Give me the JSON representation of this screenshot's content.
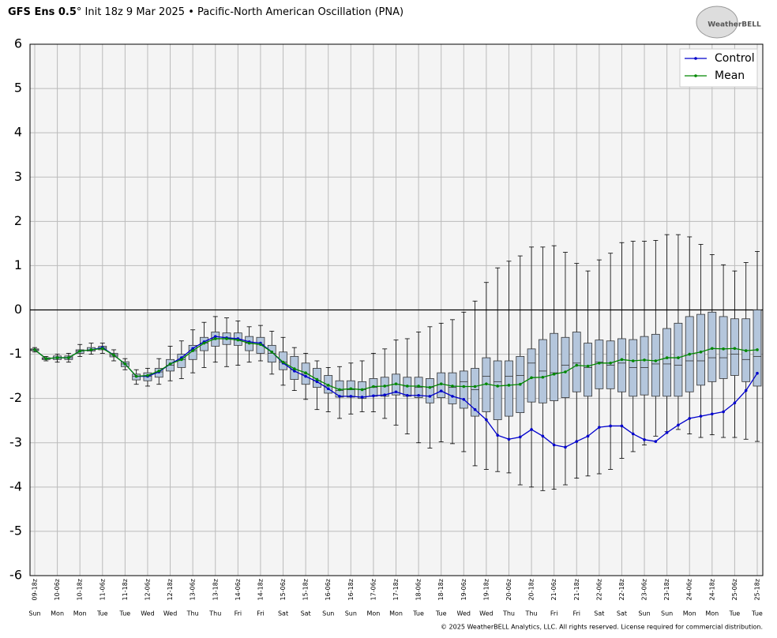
{
  "chart_data": {
    "type": "box",
    "title": [
      "GFS Ens 0.5",
      "° Init 18z 9 Mar 2025 • Pacific-North American Oscillation (PNA)"
    ],
    "logo": "WeatherBELL",
    "footer": "© 2025 WeatherBELL Analytics, LLC. All rights reserved. License required for commercial distribution.",
    "categories": [
      "09-18z",
      null,
      "10-06z",
      null,
      "10-18z",
      null,
      "11-06z",
      null,
      "11-18z",
      null,
      "12-06z",
      null,
      "12-18z",
      null,
      "13-06z",
      null,
      "13-18z",
      null,
      "14-06z",
      null,
      "14-18z",
      null,
      "15-06z",
      null,
      "15-18z",
      null,
      "16-06z",
      null,
      "16-18z",
      null,
      "17-06z",
      null,
      "17-18z",
      null,
      "18-06z",
      null,
      "18-18z",
      null,
      "19-06z",
      null,
      "19-18z",
      null,
      "20-06z",
      null,
      "20-18z",
      null,
      "21-06z",
      null,
      "21-18z",
      null,
      "22-06z",
      null,
      "22-18z",
      null,
      "23-06z",
      null,
      "23-18z",
      null,
      "24-06z",
      null,
      "24-18z",
      null,
      "25-06z",
      null,
      "25-18z"
    ],
    "days": [
      "Sun",
      null,
      "Mon",
      null,
      "Mon",
      null,
      "Tue",
      null,
      "Tue",
      null,
      "Wed",
      null,
      "Wed",
      null,
      "Thu",
      null,
      "Thu",
      null,
      "Fri",
      null,
      "Fri",
      null,
      "Sat",
      null,
      "Sat",
      null,
      "Sun",
      null,
      "Sun",
      null,
      "Mon",
      null,
      "Mon",
      null,
      "Tue",
      null,
      "Tue",
      null,
      "Wed",
      null,
      "Wed",
      null,
      "Thu",
      null,
      "Thu",
      null,
      "Fri",
      null,
      "Fri",
      null,
      "Sat",
      null,
      "Sat",
      null,
      "Sun",
      null,
      "Sun",
      null,
      "Mon",
      null,
      "Mon",
      null,
      "Tue",
      null,
      "Tue"
    ],
    "box_stats": [
      [
        -0.95,
        -0.92,
        -0.9,
        -0.88,
        -0.85
      ],
      [
        -1.15,
        -1.12,
        -1.1,
        -1.08,
        -1.05
      ],
      [
        -1.18,
        -1.12,
        -1.08,
        -1.04,
        -1.0
      ],
      [
        -1.18,
        -1.12,
        -1.08,
        -1.04,
        -0.98
      ],
      [
        -1.05,
        -0.98,
        -0.93,
        -0.9,
        -0.78
      ],
      [
        -1.0,
        -0.93,
        -0.9,
        -0.85,
        -0.75
      ],
      [
        -0.98,
        -0.9,
        -0.86,
        -0.82,
        -0.75
      ],
      [
        -1.15,
        -1.06,
        -1.02,
        -0.98,
        -0.9
      ],
      [
        -1.35,
        -1.28,
        -1.22,
        -1.17,
        -1.1
      ],
      [
        -1.68,
        -1.58,
        -1.5,
        -1.45,
        -1.35
      ],
      [
        -1.72,
        -1.6,
        -1.5,
        -1.42,
        -1.32
      ],
      [
        -1.68,
        -1.52,
        -1.4,
        -1.32,
        -1.1
      ],
      [
        -1.6,
        -1.38,
        -1.25,
        -1.12,
        -0.82
      ],
      [
        -1.55,
        -1.3,
        -1.12,
        -1.0,
        -0.7
      ],
      [
        -1.42,
        -1.12,
        -0.92,
        -0.8,
        -0.45
      ],
      [
        -1.3,
        -0.92,
        -0.75,
        -0.62,
        -0.28
      ],
      [
        -1.18,
        -0.82,
        -0.65,
        -0.5,
        -0.15
      ],
      [
        -1.28,
        -0.78,
        -0.65,
        -0.52,
        -0.18
      ],
      [
        -1.25,
        -0.8,
        -0.68,
        -0.52,
        -0.25
      ],
      [
        -1.18,
        -0.92,
        -0.75,
        -0.6,
        -0.38
      ],
      [
        -1.15,
        -0.98,
        -0.78,
        -0.62,
        -0.35
      ],
      [
        -1.45,
        -1.18,
        -0.98,
        -0.8,
        -0.48
      ],
      [
        -1.7,
        -1.35,
        -1.18,
        -0.95,
        -0.62
      ],
      [
        -1.82,
        -1.57,
        -1.35,
        -1.05,
        -0.85
      ],
      [
        -2.02,
        -1.68,
        -1.45,
        -1.2,
        -0.98
      ],
      [
        -2.25,
        -1.75,
        -1.6,
        -1.32,
        -1.15
      ],
      [
        -2.3,
        -1.88,
        -1.72,
        -1.48,
        -1.3
      ],
      [
        -2.45,
        -1.97,
        -1.82,
        -1.6,
        -1.28
      ],
      [
        -2.35,
        -1.97,
        -1.8,
        -1.6,
        -1.2
      ],
      [
        -2.3,
        -2.0,
        -1.8,
        -1.62,
        -1.15
      ],
      [
        -2.3,
        -1.95,
        -1.75,
        -1.55,
        -0.98
      ],
      [
        -2.45,
        -1.95,
        -1.72,
        -1.52,
        -0.88
      ],
      [
        -2.6,
        -1.92,
        -1.68,
        -1.45,
        -0.68
      ],
      [
        -2.8,
        -1.95,
        -1.72,
        -1.52,
        -0.65
      ],
      [
        -3.0,
        -1.98,
        -1.75,
        -1.52,
        -0.5
      ],
      [
        -3.12,
        -2.1,
        -1.75,
        -1.55,
        -0.38
      ],
      [
        -2.98,
        -1.98,
        -1.68,
        -1.42,
        -0.3
      ],
      [
        -3.02,
        -2.12,
        -1.75,
        -1.42,
        -0.22
      ],
      [
        -3.2,
        -2.22,
        -1.62,
        -1.38,
        -0.05
      ],
      [
        -3.52,
        -2.4,
        -1.8,
        -1.32,
        0.2
      ],
      [
        -3.6,
        -2.3,
        -1.5,
        -1.08,
        0.62
      ],
      [
        -3.65,
        -2.48,
        -1.62,
        -1.15,
        0.95
      ],
      [
        -3.68,
        -2.4,
        -1.5,
        -1.15,
        1.1
      ],
      [
        -3.95,
        -2.32,
        -1.48,
        -1.05,
        1.22
      ],
      [
        -4.0,
        -2.08,
        -1.2,
        -0.88,
        1.42
      ],
      [
        -4.08,
        -2.1,
        -1.38,
        -0.67,
        1.42
      ],
      [
        -4.05,
        -2.05,
        -1.42,
        -0.53,
        1.45
      ],
      [
        -3.95,
        -1.98,
        -1.25,
        -0.62,
        1.3
      ],
      [
        -3.8,
        -1.85,
        -1.2,
        -0.5,
        1.05
      ],
      [
        -3.75,
        -1.95,
        -1.3,
        -0.75,
        0.88
      ],
      [
        -3.7,
        -1.78,
        -1.18,
        -0.68,
        1.13
      ],
      [
        -3.6,
        -1.78,
        -1.25,
        -0.7,
        1.28
      ],
      [
        -3.35,
        -1.85,
        -1.2,
        -0.65,
        1.52
      ],
      [
        -3.2,
        -1.95,
        -1.3,
        -0.67,
        1.55
      ],
      [
        -3.05,
        -1.92,
        -1.3,
        -0.6,
        1.55
      ],
      [
        -2.85,
        -1.95,
        -1.22,
        -0.55,
        1.57
      ],
      [
        -2.75,
        -1.95,
        -1.22,
        -0.42,
        1.7
      ],
      [
        -2.7,
        -1.95,
        -1.25,
        -0.3,
        1.7
      ],
      [
        -2.8,
        -1.85,
        -1.15,
        -0.15,
        1.65
      ],
      [
        -2.88,
        -1.7,
        -1.15,
        -0.1,
        1.48
      ],
      [
        -2.82,
        -1.62,
        -1.08,
        -0.05,
        1.25
      ],
      [
        -2.88,
        -1.55,
        -1.08,
        -0.15,
        1.02
      ],
      [
        -2.88,
        -1.48,
        -1.0,
        -0.2,
        0.88
      ],
      [
        -2.92,
        -1.62,
        -1.12,
        -0.2,
        1.07
      ],
      [
        -2.97,
        -1.72,
        -1.05,
        0.0,
        1.32
      ]
    ],
    "box_color": "#b4c6dc",
    "series": [
      {
        "name": "Control",
        "color": "#0000cc",
        "values": [
          -0.9,
          -1.1,
          -1.08,
          -1.08,
          -0.93,
          -0.9,
          -0.85,
          -1.02,
          -1.22,
          -1.5,
          -1.5,
          -1.4,
          -1.22,
          -1.08,
          -0.87,
          -0.72,
          -0.6,
          -0.63,
          -0.65,
          -0.72,
          -0.75,
          -0.95,
          -1.2,
          -1.38,
          -1.5,
          -1.62,
          -1.78,
          -1.95,
          -1.95,
          -1.97,
          -1.94,
          -1.92,
          -1.85,
          -1.93,
          -1.93,
          -1.95,
          -1.83,
          -1.95,
          -2.02,
          -2.25,
          -2.48,
          -2.83,
          -2.92,
          -2.87,
          -2.7,
          -2.85,
          -3.05,
          -3.1,
          -2.97,
          -2.85,
          -2.65,
          -2.62,
          -2.62,
          -2.8,
          -2.93,
          -2.97,
          -2.77,
          -2.6,
          -2.45,
          -2.4,
          -2.35,
          -2.3,
          -2.1,
          -1.82,
          -1.43
        ]
      },
      {
        "name": "Mean",
        "color": "#008800",
        "values": [
          -0.9,
          -1.1,
          -1.08,
          -1.08,
          -0.93,
          -0.9,
          -0.87,
          -1.02,
          -1.22,
          -1.5,
          -1.48,
          -1.38,
          -1.22,
          -1.12,
          -0.92,
          -0.75,
          -0.65,
          -0.65,
          -0.68,
          -0.75,
          -0.78,
          -0.95,
          -1.18,
          -1.33,
          -1.42,
          -1.57,
          -1.7,
          -1.8,
          -1.78,
          -1.8,
          -1.73,
          -1.72,
          -1.67,
          -1.72,
          -1.72,
          -1.75,
          -1.67,
          -1.72,
          -1.73,
          -1.73,
          -1.67,
          -1.72,
          -1.7,
          -1.68,
          -1.53,
          -1.52,
          -1.45,
          -1.4,
          -1.25,
          -1.27,
          -1.2,
          -1.2,
          -1.12,
          -1.15,
          -1.13,
          -1.15,
          -1.08,
          -1.08,
          -1.0,
          -0.95,
          -0.87,
          -0.88,
          -0.87,
          -0.92,
          -0.9
        ]
      }
    ],
    "ylim": [
      -6,
      6
    ],
    "yticks": [
      -6,
      -5,
      -4,
      -3,
      -2,
      -1,
      0,
      1,
      2,
      3,
      4,
      5,
      6
    ],
    "grid": true,
    "legend": "upper right"
  }
}
